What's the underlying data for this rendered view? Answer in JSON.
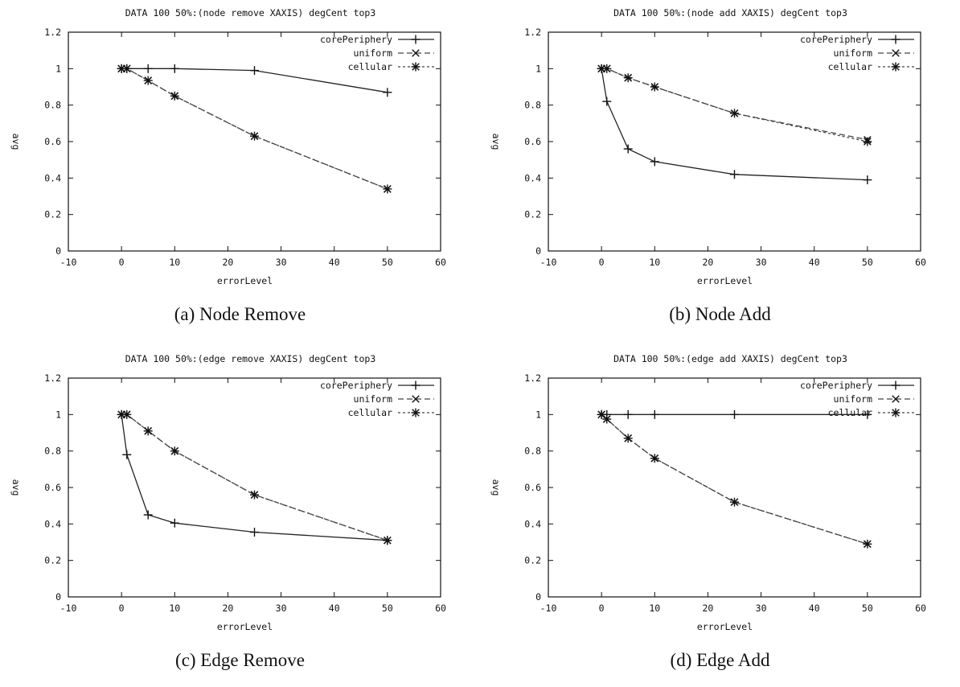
{
  "chart_data": [
    {
      "type": "line",
      "title": "DATA 100 50%:(node remove XAXIS) degCent top3",
      "caption": "(a)  Node Remove",
      "xlabel": "errorLevel",
      "ylabel": "avg",
      "xlim": [
        -10,
        60
      ],
      "ylim": [
        0,
        1.2
      ],
      "xticks": [
        "-10",
        "0",
        "10",
        "20",
        "30",
        "40",
        "50",
        "60"
      ],
      "yticks": [
        "0",
        "0.2",
        "0.4",
        "0.6",
        "0.8",
        "1",
        "1.2"
      ],
      "grid": false,
      "legend": "top-right",
      "x": [
        0,
        1,
        5,
        10,
        25,
        50
      ],
      "series": [
        {
          "name": "corePeriphery",
          "marker": "plus",
          "values": [
            1.0,
            1.0,
            1.0,
            1.0,
            0.99,
            0.87
          ]
        },
        {
          "name": "uniform",
          "marker": "cross",
          "values": [
            1.0,
            1.0,
            0.935,
            0.85,
            0.63,
            0.34
          ]
        },
        {
          "name": "cellular",
          "marker": "star",
          "values": [
            1.0,
            1.0,
            0.935,
            0.85,
            0.63,
            0.34
          ]
        }
      ]
    },
    {
      "type": "line",
      "title": "DATA 100 50%:(node add XAXIS) degCent top3",
      "caption": "(b) Node Add",
      "xlabel": "errorLevel",
      "ylabel": "avg",
      "xlim": [
        -10,
        60
      ],
      "ylim": [
        0,
        1.2
      ],
      "xticks": [
        "-10",
        "0",
        "10",
        "20",
        "30",
        "40",
        "50",
        "60"
      ],
      "yticks": [
        "0",
        "0.2",
        "0.4",
        "0.6",
        "0.8",
        "1",
        "1.2"
      ],
      "grid": false,
      "legend": "top-right",
      "x": [
        0,
        1,
        5,
        10,
        25,
        50
      ],
      "series": [
        {
          "name": "corePeriphery",
          "marker": "plus",
          "values": [
            1.0,
            0.82,
            0.56,
            0.49,
            0.42,
            0.39
          ]
        },
        {
          "name": "uniform",
          "marker": "cross",
          "values": [
            1.0,
            1.0,
            0.95,
            0.9,
            0.755,
            0.61
          ]
        },
        {
          "name": "cellular",
          "marker": "star",
          "values": [
            1.0,
            1.0,
            0.95,
            0.9,
            0.755,
            0.6
          ]
        }
      ]
    },
    {
      "type": "line",
      "title": "DATA 100 50%:(edge remove XAXIS) degCent top3",
      "caption": "(c)  Edge Remove",
      "xlabel": "errorLevel",
      "ylabel": "avg",
      "xlim": [
        -10,
        60
      ],
      "ylim": [
        0,
        1.2
      ],
      "xticks": [
        "-10",
        "0",
        "10",
        "20",
        "30",
        "40",
        "50",
        "60"
      ],
      "yticks": [
        "0",
        "0.2",
        "0.4",
        "0.6",
        "0.8",
        "1",
        "1.2"
      ],
      "grid": false,
      "legend": "top-right",
      "x": [
        0,
        1,
        5,
        10,
        25,
        50
      ],
      "series": [
        {
          "name": "corePeriphery",
          "marker": "plus",
          "values": [
            1.0,
            0.78,
            0.45,
            0.405,
            0.355,
            0.31
          ]
        },
        {
          "name": "uniform",
          "marker": "cross",
          "values": [
            1.0,
            1.0,
            0.91,
            0.8,
            0.56,
            0.31
          ]
        },
        {
          "name": "cellular",
          "marker": "star",
          "values": [
            1.0,
            1.0,
            0.91,
            0.8,
            0.56,
            0.31
          ]
        }
      ]
    },
    {
      "type": "line",
      "title": "DATA 100 50%:(edge add XAXIS) degCent top3",
      "caption": "(d) Edge Add",
      "xlabel": "errorLevel",
      "ylabel": "avg",
      "xlim": [
        -10,
        60
      ],
      "ylim": [
        0,
        1.2
      ],
      "xticks": [
        "-10",
        "0",
        "10",
        "20",
        "30",
        "40",
        "50",
        "60"
      ],
      "yticks": [
        "0",
        "0.2",
        "0.4",
        "0.6",
        "0.8",
        "1",
        "1.2"
      ],
      "grid": false,
      "legend": "top-right",
      "x": [
        0,
        1,
        5,
        10,
        25,
        50
      ],
      "series": [
        {
          "name": "corePeriphery",
          "marker": "plus",
          "values": [
            1.0,
            1.0,
            1.0,
            1.0,
            1.0,
            1.0
          ]
        },
        {
          "name": "uniform",
          "marker": "cross",
          "values": [
            1.0,
            0.975,
            0.87,
            0.76,
            0.52,
            0.29
          ]
        },
        {
          "name": "cellular",
          "marker": "star",
          "values": [
            1.0,
            0.975,
            0.87,
            0.76,
            0.52,
            0.29
          ]
        }
      ]
    }
  ]
}
